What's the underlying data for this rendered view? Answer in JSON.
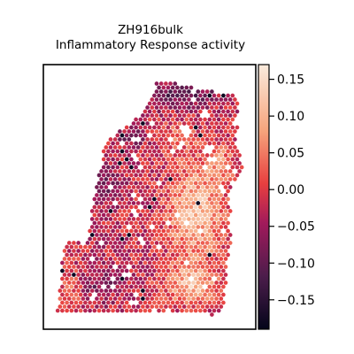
{
  "chart_data": {
    "type": "heatmap",
    "title": "ZH916bulk",
    "subtitle": "Inflammatory Response activity",
    "xlabel": "",
    "ylabel": "",
    "axes_ticks_visible": false,
    "colormap": "rocket",
    "colorbar": {
      "range": [
        -0.19,
        0.17
      ],
      "ticks": [
        0.15,
        0.1,
        0.05,
        0.0,
        -0.05,
        -0.1,
        -0.15
      ],
      "tick_labels": [
        "0.15",
        "0.10",
        "0.05",
        "0.00",
        "−0.05",
        "−0.10",
        "−0.15"
      ],
      "placement": "right"
    },
    "spots_description_value_range": [
      -0.19,
      0.17
    ],
    "colors": {
      "low": "#03051a",
      "mid_low": "#4c1d4b",
      "mid": "#cb1b4f",
      "mid_high": "#f37651",
      "high": "#faebdd"
    }
  }
}
